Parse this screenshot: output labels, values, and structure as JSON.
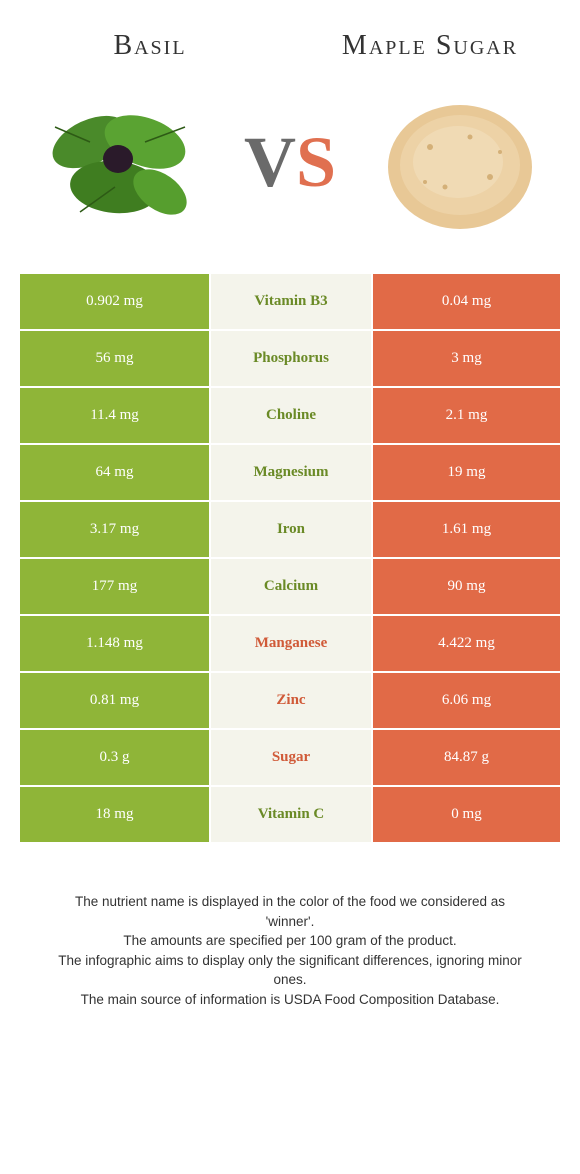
{
  "colors": {
    "basil": "#8fb538",
    "maple": "#e16a47",
    "mid_bg": "#f4f4eb",
    "basil_text": "#6a8a26",
    "maple_text": "#d05a38"
  },
  "left_food": {
    "title": "Basil"
  },
  "right_food": {
    "title": "Maple Sugar"
  },
  "vs": {
    "v": "V",
    "s": "S"
  },
  "rows": [
    {
      "nutrient": "Vitamin B3",
      "left": "0.902 mg",
      "right": "0.04 mg",
      "winner": "basil"
    },
    {
      "nutrient": "Phosphorus",
      "left": "56 mg",
      "right": "3 mg",
      "winner": "basil"
    },
    {
      "nutrient": "Choline",
      "left": "11.4 mg",
      "right": "2.1 mg",
      "winner": "basil"
    },
    {
      "nutrient": "Magnesium",
      "left": "64 mg",
      "right": "19 mg",
      "winner": "basil"
    },
    {
      "nutrient": "Iron",
      "left": "3.17 mg",
      "right": "1.61 mg",
      "winner": "basil"
    },
    {
      "nutrient": "Calcium",
      "left": "177 mg",
      "right": "90 mg",
      "winner": "basil"
    },
    {
      "nutrient": "Manganese",
      "left": "1.148 mg",
      "right": "4.422 mg",
      "winner": "maple"
    },
    {
      "nutrient": "Zinc",
      "left": "0.81 mg",
      "right": "6.06 mg",
      "winner": "maple"
    },
    {
      "nutrient": "Sugar",
      "left": "0.3 g",
      "right": "84.87 g",
      "winner": "maple"
    },
    {
      "nutrient": "Vitamin C",
      "left": "18 mg",
      "right": "0 mg",
      "winner": "basil"
    }
  ],
  "footnotes": [
    "The nutrient name is displayed in the color of the food we considered as 'winner'.",
    "The amounts are specified per 100 gram of the product.",
    "The infographic aims to display only the significant differences, ignoring minor ones.",
    "The main source of information is USDA Food Composition Database."
  ]
}
